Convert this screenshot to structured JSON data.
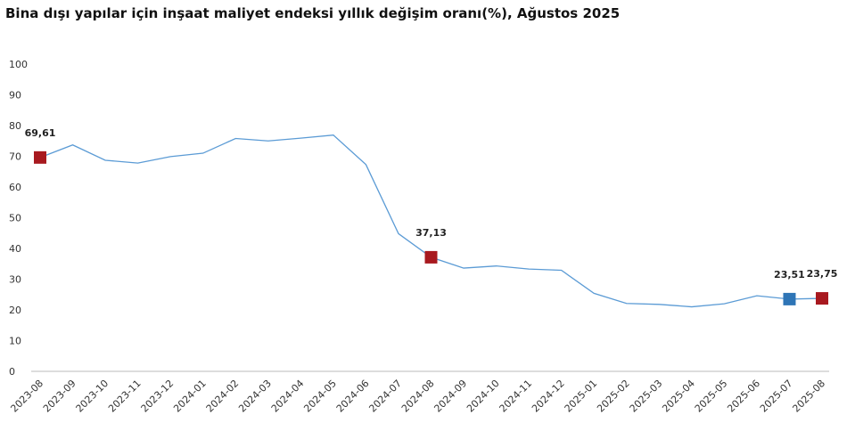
{
  "chart_data": {
    "type": "line",
    "title": "Bina dışı yapılar için inşaat maliyet endeksi yıllık değişim oranı(%), Ağustos 2025",
    "categories": [
      "2023-08",
      "2023-09",
      "2023-10",
      "2023-11",
      "2023-12",
      "2024-01",
      "2024-02",
      "2024-03",
      "2024-04",
      "2024-05",
      "2024-06",
      "2024-07",
      "2024-08",
      "2024-09",
      "2024-10",
      "2024-11",
      "2024-12",
      "2025-01",
      "2025-02",
      "2025-03",
      "2025-04",
      "2025-05",
      "2025-06",
      "2025-07",
      "2025-08"
    ],
    "series": [
      {
        "color": "#5b9bd5",
        "values": [
          69.61,
          73.7,
          68.7,
          67.8,
          69.9,
          71.0,
          75.8,
          75.0,
          75.9,
          76.9,
          67.3,
          44.8,
          37.13,
          33.6,
          34.3,
          33.3,
          32.9,
          25.4,
          22.1,
          21.8,
          21.0,
          22.0,
          24.6,
          23.51,
          23.75
        ],
        "value_labels": [
          "69,61",
          null,
          null,
          null,
          null,
          null,
          null,
          null,
          null,
          null,
          null,
          null,
          "37,13",
          null,
          null,
          null,
          null,
          null,
          null,
          null,
          null,
          null,
          null,
          "23,51",
          "23,75"
        ],
        "marker_colors": [
          "#a8191f",
          null,
          null,
          null,
          null,
          null,
          null,
          null,
          null,
          null,
          null,
          null,
          "#a8191f",
          null,
          null,
          null,
          null,
          null,
          null,
          null,
          null,
          null,
          null,
          "#2e75b6",
          "#a8191f"
        ]
      }
    ],
    "ylim": [
      0,
      100
    ],
    "yticks": [
      0,
      10,
      20,
      30,
      40,
      50,
      60,
      70,
      80,
      90,
      100
    ],
    "grid": false
  }
}
